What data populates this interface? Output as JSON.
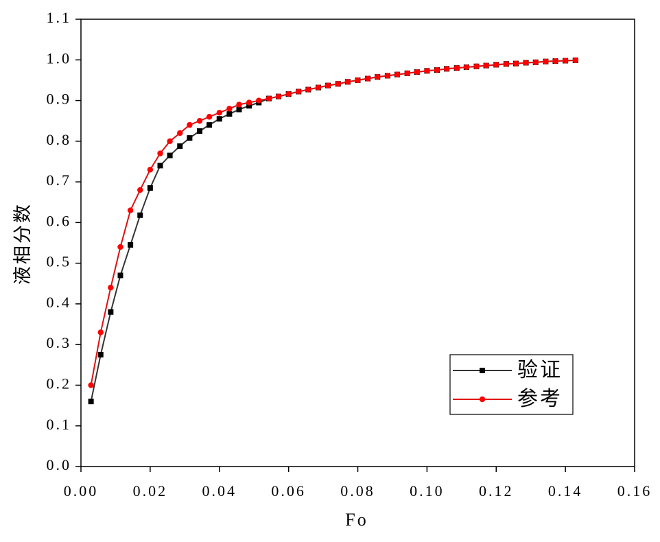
{
  "chart_data": {
    "type": "line",
    "xlabel": "Fo",
    "ylabel": "液相分数",
    "x": [
      0.0029,
      0.0057,
      0.0086,
      0.0114,
      0.0143,
      0.0171,
      0.02,
      0.0229,
      0.0257,
      0.0286,
      0.0314,
      0.0343,
      0.0371,
      0.04,
      0.0429,
      0.0457,
      0.0486,
      0.0514,
      0.0543,
      0.0571,
      0.06,
      0.0629,
      0.0657,
      0.0686,
      0.0714,
      0.0743,
      0.0771,
      0.08,
      0.0829,
      0.0857,
      0.0886,
      0.0914,
      0.0943,
      0.0971,
      0.1,
      0.1029,
      0.1057,
      0.1086,
      0.1114,
      0.1143,
      0.1171,
      0.12,
      0.1229,
      0.1257,
      0.1286,
      0.1314,
      0.1343,
      0.1371,
      0.14,
      0.1429
    ],
    "series": [
      {
        "name": "验证",
        "color": "#000000",
        "line_color": "#333333",
        "marker": "square",
        "values": [
          0.16,
          0.275,
          0.38,
          0.47,
          0.545,
          0.618,
          0.685,
          0.74,
          0.765,
          0.788,
          0.808,
          0.825,
          0.84,
          0.855,
          0.867,
          0.878,
          0.887,
          0.895,
          0.905,
          0.91,
          0.916,
          0.922,
          0.927,
          0.932,
          0.937,
          0.941,
          0.946,
          0.95,
          0.954,
          0.958,
          0.961,
          0.964,
          0.967,
          0.97,
          0.973,
          0.975,
          0.978,
          0.98,
          0.982,
          0.984,
          0.986,
          0.988,
          0.99,
          0.991,
          0.993,
          0.994,
          0.996,
          0.997,
          0.998,
          0.999
        ]
      },
      {
        "name": "参考",
        "color": "#ff0000",
        "line_color": "#e01010",
        "marker": "circle",
        "values": [
          0.2,
          0.33,
          0.44,
          0.54,
          0.63,
          0.68,
          0.73,
          0.77,
          0.8,
          0.82,
          0.84,
          0.85,
          0.86,
          0.87,
          0.88,
          0.89,
          0.895,
          0.9,
          0.905,
          0.91,
          0.916,
          0.922,
          0.927,
          0.932,
          0.937,
          0.941,
          0.946,
          0.95,
          0.954,
          0.958,
          0.961,
          0.964,
          0.967,
          0.97,
          0.973,
          0.975,
          0.978,
          0.98,
          0.982,
          0.984,
          0.986,
          0.988,
          0.99,
          0.991,
          0.993,
          0.994,
          0.996,
          0.997,
          0.998,
          0.999
        ]
      }
    ],
    "xlim": [
      0,
      0.16
    ],
    "xticks": [
      {
        "value": 0,
        "label": "0.00"
      },
      0.02,
      0.04,
      0.06,
      0.08,
      {
        "value": 0.1,
        "label": "0.10"
      },
      0.12,
      0.14,
      0.16
    ],
    "ylim": [
      0,
      1.1
    ],
    "yticks": [
      {
        "value": 0,
        "label": "0.0"
      },
      0.1,
      0.2,
      0.3,
      0.4,
      0.5,
      0.6,
      0.7,
      0.8,
      0.9,
      {
        "value": 1,
        "label": "1.0"
      },
      1.1
    ],
    "grid": false,
    "legend": "lower right"
  }
}
